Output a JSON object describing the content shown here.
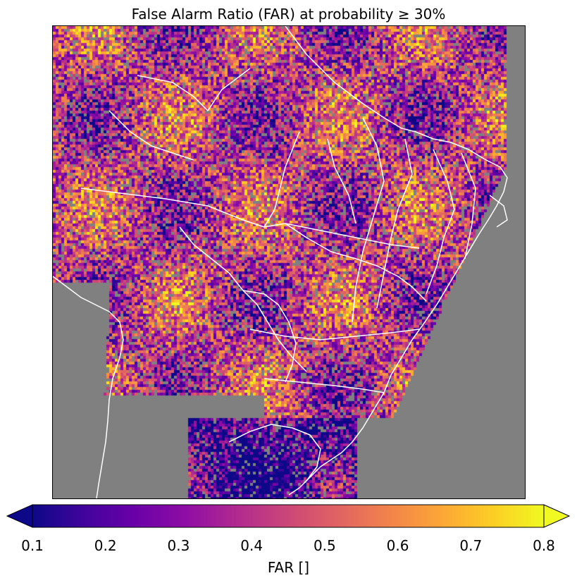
{
  "chart_data": {
    "type": "heatmap",
    "title": "False Alarm Ratio (FAR) at probability ≥ 30%",
    "colorbar": {
      "label": "FAR []",
      "min": 0.1,
      "max": 0.8,
      "extend": "both",
      "colormap": "plasma",
      "ticks": [
        0.1,
        0.2,
        0.3,
        0.4,
        0.5,
        0.6,
        0.7,
        0.8
      ],
      "tick_labels": [
        "0.1",
        "0.2",
        "0.3",
        "0.4",
        "0.5",
        "0.6",
        "0.7",
        "0.8"
      ]
    },
    "background_color": "#808080",
    "border_color": "#ffffff",
    "grid": false
  }
}
